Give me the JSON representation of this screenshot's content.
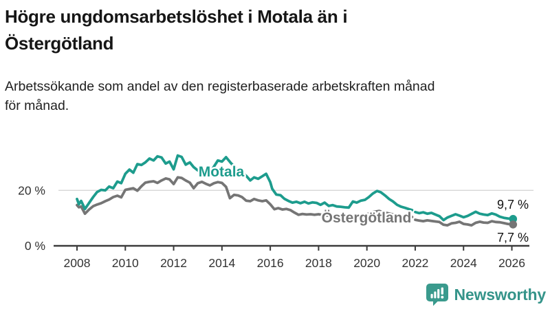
{
  "header": {
    "title": "Högre ungdomsarbetslöshet i Motala än i\nÖstergötland",
    "subtitle": "Arbetssökande som andel av den registerbaserade arbetskraften månad\nför månad."
  },
  "chart_data": {
    "type": "line",
    "unit": "%",
    "title": "Högre ungdomsarbetslöshet i Motala än i Östergötland",
    "xlabel": "",
    "ylabel": "",
    "xlim": [
      2007.2,
      2026.9
    ],
    "ylim": [
      0,
      38
    ],
    "grid": "single horizontal gridline at 20 %",
    "x_ticks": [
      2008,
      2010,
      2012,
      2014,
      2016,
      2018,
      2020,
      2022,
      2024,
      2026
    ],
    "y_ticks": [
      {
        "value": 20,
        "label": "20 %"
      },
      {
        "value": 0,
        "label": "0 %"
      }
    ],
    "series": [
      {
        "name": "Motala",
        "color": "#1d9c8d",
        "end_value": 9.7,
        "end_label": "9,7 %",
        "points": [
          [
            2008.0,
            16.9
          ],
          [
            2008.08,
            15.0
          ],
          [
            2008.17,
            16.2
          ],
          [
            2008.33,
            13.3
          ],
          [
            2008.5,
            15.5
          ],
          [
            2008.67,
            17.6
          ],
          [
            2008.83,
            19.4
          ],
          [
            2009.0,
            20.2
          ],
          [
            2009.17,
            20.0
          ],
          [
            2009.33,
            21.4
          ],
          [
            2009.5,
            20.8
          ],
          [
            2009.67,
            23.2
          ],
          [
            2009.83,
            22.6
          ],
          [
            2010.0,
            26.0
          ],
          [
            2010.17,
            27.5
          ],
          [
            2010.33,
            26.4
          ],
          [
            2010.5,
            29.5
          ],
          [
            2010.67,
            29.2
          ],
          [
            2010.83,
            30.1
          ],
          [
            2011.0,
            31.5
          ],
          [
            2011.17,
            30.8
          ],
          [
            2011.33,
            32.3
          ],
          [
            2011.5,
            31.9
          ],
          [
            2011.67,
            29.7
          ],
          [
            2011.83,
            30.4
          ],
          [
            2012.0,
            27.6
          ],
          [
            2012.17,
            32.6
          ],
          [
            2012.33,
            32.1
          ],
          [
            2012.5,
            29.3
          ],
          [
            2012.67,
            30.1
          ],
          [
            2012.83,
            28.4
          ],
          [
            2013.0,
            27.2
          ],
          [
            2013.17,
            28.2
          ],
          [
            2013.33,
            26.9
          ],
          [
            2013.5,
            26.4
          ],
          [
            2013.67,
            28.6
          ],
          [
            2013.83,
            30.8
          ],
          [
            2014.0,
            30.4
          ],
          [
            2014.17,
            32.0
          ],
          [
            2014.33,
            30.3
          ],
          [
            2014.5,
            28.6
          ],
          [
            2014.67,
            27.4
          ],
          [
            2014.83,
            26.3
          ],
          [
            2015.0,
            25.3
          ],
          [
            2015.17,
            23.6
          ],
          [
            2015.33,
            24.7
          ],
          [
            2015.5,
            24.2
          ],
          [
            2015.67,
            25.1
          ],
          [
            2015.83,
            26.0
          ],
          [
            2016.0,
            23.0
          ],
          [
            2016.08,
            20.6
          ],
          [
            2016.25,
            18.5
          ],
          [
            2016.42,
            18.3
          ],
          [
            2016.58,
            17.0
          ],
          [
            2016.75,
            16.2
          ],
          [
            2016.92,
            15.6
          ],
          [
            2017.08,
            15.9
          ],
          [
            2017.25,
            15.4
          ],
          [
            2017.42,
            15.9
          ],
          [
            2017.58,
            15.3
          ],
          [
            2017.75,
            15.7
          ],
          [
            2017.92,
            15.5
          ],
          [
            2018.08,
            14.8
          ],
          [
            2018.25,
            15.6
          ],
          [
            2018.42,
            14.4
          ],
          [
            2018.58,
            14.7
          ],
          [
            2018.75,
            14.2
          ],
          [
            2018.92,
            14.1
          ],
          [
            2019.08,
            13.9
          ],
          [
            2019.25,
            13.8
          ],
          [
            2019.42,
            16.0
          ],
          [
            2019.58,
            15.6
          ],
          [
            2019.75,
            16.3
          ],
          [
            2019.92,
            16.6
          ],
          [
            2020.08,
            17.6
          ],
          [
            2020.25,
            18.9
          ],
          [
            2020.42,
            19.8
          ],
          [
            2020.58,
            19.3
          ],
          [
            2020.75,
            18.2
          ],
          [
            2020.92,
            16.9
          ],
          [
            2021.08,
            16.0
          ],
          [
            2021.25,
            14.8
          ],
          [
            2021.42,
            14.1
          ],
          [
            2021.58,
            13.7
          ],
          [
            2021.75,
            13.2
          ],
          [
            2021.87,
            12.9
          ],
          null,
          [
            2022.0,
            12.2
          ],
          [
            2022.17,
            11.8
          ],
          [
            2022.33,
            12.1
          ],
          [
            2022.5,
            11.6
          ],
          [
            2022.67,
            11.9
          ],
          [
            2022.83,
            11.3
          ],
          [
            2023.0,
            10.7
          ],
          [
            2023.17,
            9.3
          ],
          [
            2023.33,
            10.2
          ],
          [
            2023.5,
            10.8
          ],
          [
            2023.67,
            11.4
          ],
          [
            2023.83,
            10.9
          ],
          [
            2024.0,
            10.3
          ],
          [
            2024.17,
            10.8
          ],
          [
            2024.33,
            11.5
          ],
          [
            2024.5,
            12.3
          ],
          [
            2024.67,
            11.6
          ],
          [
            2024.83,
            11.3
          ],
          [
            2025.0,
            11.1
          ],
          [
            2025.17,
            11.7
          ],
          [
            2025.33,
            11.3
          ],
          [
            2025.5,
            10.5
          ],
          [
            2025.67,
            10.1
          ],
          [
            2025.83,
            9.9
          ],
          [
            2026.05,
            9.7
          ]
        ]
      },
      {
        "name": "Östergötland",
        "color": "#757575",
        "end_value": 7.7,
        "end_label": "7,7 %",
        "points": [
          [
            2008.0,
            14.7
          ],
          [
            2008.08,
            13.9
          ],
          [
            2008.17,
            14.2
          ],
          [
            2008.33,
            11.6
          ],
          [
            2008.5,
            13.1
          ],
          [
            2008.67,
            14.3
          ],
          [
            2008.83,
            14.9
          ],
          [
            2009.0,
            15.4
          ],
          [
            2009.17,
            16.1
          ],
          [
            2009.33,
            16.7
          ],
          [
            2009.5,
            17.6
          ],
          [
            2009.67,
            18.1
          ],
          [
            2009.83,
            17.5
          ],
          [
            2010.0,
            20.2
          ],
          [
            2010.17,
            20.5
          ],
          [
            2010.33,
            20.8
          ],
          [
            2010.5,
            19.9
          ],
          [
            2010.67,
            21.5
          ],
          [
            2010.83,
            22.8
          ],
          [
            2011.0,
            23.1
          ],
          [
            2011.17,
            23.3
          ],
          [
            2011.33,
            22.7
          ],
          [
            2011.5,
            23.6
          ],
          [
            2011.67,
            24.3
          ],
          [
            2011.83,
            24.0
          ],
          [
            2012.0,
            22.3
          ],
          [
            2012.17,
            24.7
          ],
          [
            2012.33,
            24.5
          ],
          [
            2012.5,
            23.6
          ],
          [
            2012.67,
            22.8
          ],
          [
            2012.83,
            20.8
          ],
          [
            2013.0,
            22.6
          ],
          [
            2013.17,
            23.1
          ],
          [
            2013.33,
            22.4
          ],
          [
            2013.5,
            21.8
          ],
          [
            2013.67,
            22.6
          ],
          [
            2013.83,
            23.0
          ],
          [
            2014.0,
            22.7
          ],
          [
            2014.17,
            21.3
          ],
          [
            2014.33,
            17.2
          ],
          [
            2014.5,
            18.4
          ],
          [
            2014.67,
            18.2
          ],
          [
            2014.83,
            17.6
          ],
          [
            2015.0,
            16.3
          ],
          [
            2015.17,
            16.1
          ],
          [
            2015.33,
            16.9
          ],
          [
            2015.5,
            16.4
          ],
          [
            2015.67,
            16.1
          ],
          [
            2015.83,
            16.4
          ],
          [
            2016.0,
            15.0
          ],
          [
            2016.17,
            13.2
          ],
          [
            2016.33,
            13.6
          ],
          [
            2016.5,
            13.1
          ],
          [
            2016.67,
            13.3
          ],
          [
            2016.83,
            12.9
          ],
          [
            2017.0,
            12.0
          ],
          [
            2017.17,
            11.2
          ],
          [
            2017.33,
            11.5
          ],
          [
            2017.5,
            11.3
          ],
          [
            2017.67,
            11.4
          ],
          [
            2017.83,
            11.2
          ],
          [
            2018.0,
            11.4
          ],
          [
            2018.25,
            11.0
          ],
          [
            2018.5,
            10.8
          ],
          [
            2018.75,
            10.6
          ],
          [
            2019.0,
            10.4
          ],
          [
            2019.25,
            10.3
          ],
          [
            2019.5,
            10.6
          ],
          [
            2019.75,
            10.9
          ],
          [
            2020.0,
            11.4
          ],
          [
            2020.25,
            12.2
          ],
          [
            2020.5,
            12.6
          ],
          [
            2020.75,
            12.0
          ],
          [
            2021.0,
            11.5
          ],
          [
            2021.25,
            11.0
          ],
          [
            2021.5,
            10.7
          ],
          [
            2021.87,
            10.4
          ],
          null,
          [
            2022.0,
            9.4
          ],
          [
            2022.17,
            9.1
          ],
          [
            2022.33,
            8.9
          ],
          [
            2022.5,
            9.2
          ],
          [
            2022.67,
            9.0
          ],
          [
            2022.83,
            8.8
          ],
          [
            2023.0,
            8.6
          ],
          [
            2023.17,
            7.6
          ],
          [
            2023.33,
            7.4
          ],
          [
            2023.5,
            8.1
          ],
          [
            2023.67,
            8.3
          ],
          [
            2023.83,
            8.7
          ],
          [
            2024.0,
            7.9
          ],
          [
            2024.17,
            7.7
          ],
          [
            2024.33,
            7.4
          ],
          [
            2024.5,
            8.3
          ],
          [
            2024.67,
            8.7
          ],
          [
            2024.83,
            8.4
          ],
          [
            2025.0,
            8.3
          ],
          [
            2025.17,
            8.9
          ],
          [
            2025.33,
            8.6
          ],
          [
            2025.5,
            8.5
          ],
          [
            2025.67,
            8.2
          ],
          [
            2025.83,
            7.9
          ],
          [
            2026.05,
            7.7
          ]
        ]
      }
    ],
    "legend_position": "inline labels on lines",
    "axis_color": "#3b3b3b",
    "grid_color": "#d9d9d9",
    "tick_label_color": "#333333",
    "end_label_color": "#111111"
  },
  "footer": {
    "brand": "Newsworthy",
    "brand_color": "#35948a",
    "logo_icon": "bar-chart-speech-bubble-icon",
    "logo_icon_color": "#3a9a8d"
  }
}
